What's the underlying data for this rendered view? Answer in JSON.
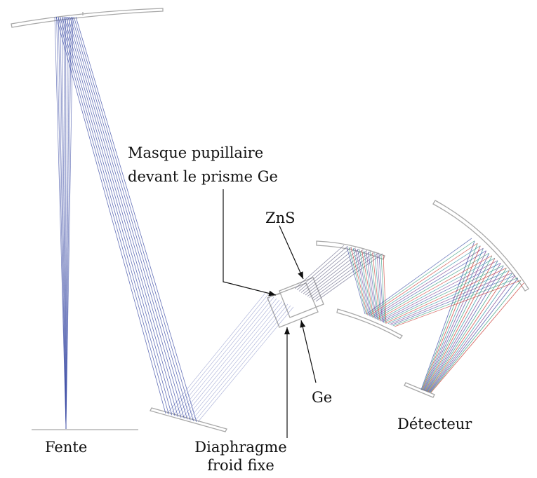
{
  "labels": {
    "fente": "Fente",
    "masque_line1": "Masque pupillaire",
    "masque_line2": "devant le prisme Ge",
    "zns": "ZnS",
    "ge": "Ge",
    "diaphragme_line1": "Diaphragme",
    "diaphragme_line2": "froid fixe",
    "detecteur": "Détecteur"
  },
  "colors": {
    "ray_blue": "#3d4ea6",
    "ray_green": "#2f9a77",
    "ray_red": "#c9362f",
    "ray_teal": "#2a8fa0",
    "ray_purple": "#7a3f8f",
    "optics_gray": "#a8a8a8",
    "text": "#111111"
  }
}
